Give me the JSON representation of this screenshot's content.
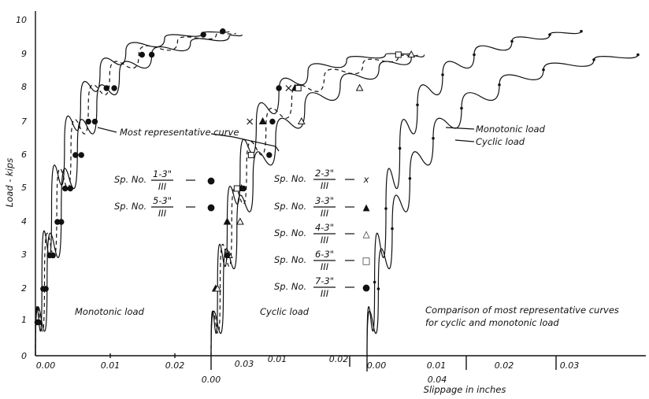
{
  "chart_data": [
    {
      "panel": "Monotonic load",
      "type": "scatter",
      "xlim": [
        0,
        0.033
      ],
      "ylim": [
        0,
        10
      ],
      "x_ticks": [
        "0.00",
        "0.01",
        "0.02"
      ],
      "series": [
        {
          "name": "Sp. No. 1-3\" / III",
          "x": [
            0.0003,
            0.0012,
            0.0022,
            0.0034,
            0.0046,
            0.0062,
            0.0082,
            0.011,
            0.0165,
            0.026
          ],
          "y": [
            1,
            2,
            3,
            4,
            5,
            6,
            7,
            8,
            9,
            9.6
          ]
        },
        {
          "name": "Sp. No. 5-3\" / III",
          "x": [
            0.0005,
            0.0016,
            0.0027,
            0.004,
            0.0054,
            0.0071,
            0.0092,
            0.0122,
            0.018,
            0.029
          ],
          "y": [
            1,
            2,
            3,
            4,
            5,
            6,
            7,
            8,
            9,
            9.7
          ]
        }
      ],
      "curves": [
        {
          "style": "solid",
          "x": [
            0,
            0.001,
            0.0025,
            0.0045,
            0.007,
            0.01,
            0.014,
            0.02,
            0.026,
            0.03
          ],
          "y": [
            0,
            2.2,
            4.5,
            6.3,
            7.6,
            8.5,
            9.1,
            9.5,
            9.65,
            9.7
          ]
        },
        {
          "style": "dashed",
          "x": [
            0,
            0.0014,
            0.0033,
            0.0055,
            0.0082,
            0.0115,
            0.016,
            0.022,
            0.028,
            0.031
          ],
          "y": [
            0,
            2.2,
            4.4,
            6.2,
            7.5,
            8.4,
            9.0,
            9.4,
            9.6,
            9.65
          ]
        },
        {
          "style": "solid",
          "x": [
            0,
            0.0018,
            0.004,
            0.0065,
            0.0095,
            0.013,
            0.018,
            0.024,
            0.03,
            0.032
          ],
          "y": [
            0,
            2.2,
            4.4,
            6.2,
            7.5,
            8.4,
            9.0,
            9.35,
            9.55,
            9.6
          ]
        }
      ]
    },
    {
      "panel": "Cyclic load",
      "type": "scatter",
      "xlim": [
        0,
        0.033
      ],
      "ylim": [
        0,
        10
      ],
      "x_ticks": [
        "0.00",
        "0.01",
        "0.02",
        "0.03",
        "0.04"
      ],
      "series": [
        {
          "name": "Sp. No. 2-3\" / III",
          "x": [
            0.006,
            0.012
          ],
          "y": [
            7,
            8
          ]
        },
        {
          "name": "Sp. No. 3-3\" / III",
          "x": [
            0.0007,
            0.0025,
            0.0047,
            0.008,
            0.013
          ],
          "y": [
            2,
            4,
            5,
            7,
            8
          ]
        },
        {
          "name": "Sp. No. 4-3\" / III",
          "x": [
            0.001,
            0.0028,
            0.0045,
            0.014,
            0.023,
            0.031
          ],
          "y": [
            2,
            3,
            4,
            7,
            8,
            9
          ]
        },
        {
          "name": "Sp. No. 6-3\" / III",
          "x": [
            0.004,
            0.0062,
            0.0135,
            0.029
          ],
          "y": [
            5,
            6,
            8,
            9
          ]
        },
        {
          "name": "Sp. No. 7-3\" / III",
          "x": [
            0.0025,
            0.005,
            0.009,
            0.0095,
            0.0105
          ],
          "y": [
            3,
            5,
            6,
            7,
            8
          ]
        }
      ],
      "curves": [
        {
          "style": "solid",
          "x": [
            0,
            0.001,
            0.0025,
            0.0045,
            0.007,
            0.0105,
            0.015,
            0.021,
            0.027,
            0.031
          ],
          "y": [
            0,
            2.0,
            4.0,
            5.6,
            6.9,
            7.9,
            8.5,
            8.85,
            9.0,
            9.05
          ]
        },
        {
          "style": "dashed",
          "x": [
            0,
            0.0014,
            0.0032,
            0.0055,
            0.0085,
            0.0125,
            0.0175,
            0.0235,
            0.029,
            0.032
          ],
          "y": [
            0,
            2.0,
            4.0,
            5.6,
            6.8,
            7.7,
            8.3,
            8.7,
            8.95,
            9.0
          ]
        },
        {
          "style": "solid",
          "x": [
            0,
            0.0019,
            0.004,
            0.0065,
            0.01,
            0.0145,
            0.02,
            0.026,
            0.031,
            0.033
          ],
          "y": [
            0,
            2.0,
            3.8,
            5.3,
            6.5,
            7.4,
            8.1,
            8.6,
            8.9,
            9.0
          ]
        }
      ]
    },
    {
      "panel": "Comparison of most representative curves for cyclic and monotonic load",
      "type": "line",
      "xlim": [
        0,
        0.044
      ],
      "ylim": [
        0,
        10
      ],
      "x_ticks": [
        "0.00",
        "0.01",
        "0.02",
        "0.03"
      ],
      "series": [
        {
          "name": "Monotonic load",
          "x": [
            0,
            0.0012,
            0.003,
            0.0052,
            0.008,
            0.012,
            0.017,
            0.023,
            0.029,
            0.034
          ],
          "y": [
            0,
            2.2,
            4.4,
            6.2,
            7.5,
            8.4,
            9.0,
            9.4,
            9.6,
            9.7
          ]
        },
        {
          "name": "Cyclic load",
          "x": [
            0,
            0.0018,
            0.004,
            0.0068,
            0.0105,
            0.015,
            0.021,
            0.028,
            0.036,
            0.043
          ],
          "y": [
            0,
            2.0,
            3.8,
            5.3,
            6.5,
            7.4,
            8.1,
            8.55,
            8.85,
            9.0
          ]
        }
      ]
    }
  ],
  "labels": {
    "ylabel": "Load - kips",
    "xlabel": "Slippage in inches",
    "y_ticks": [
      "0",
      "1",
      "2",
      "3",
      "4",
      "5",
      "6",
      "7",
      "8",
      "9",
      "10"
    ],
    "most_representative": "Most representative curve",
    "monotonic_load": "Monotonic load",
    "cyclic_load": "Cyclic load",
    "comparison_line1": "Comparison of most representative curves",
    "comparison_line2": "for cyclic and monotonic load",
    "curve_monotonic": "Monotonic load",
    "curve_cyclic": "Cyclic load",
    "sp_prefix": "Sp. No.",
    "legend_left": [
      {
        "num": "1-3\"",
        "den": "III",
        "marker": "●"
      },
      {
        "num": "5-3\"",
        "den": "III",
        "marker": "●"
      }
    ],
    "legend_mid": [
      {
        "num": "2-3\"",
        "den": "III",
        "marker": "x"
      },
      {
        "num": "3-3\"",
        "den": "III",
        "marker": "▲"
      },
      {
        "num": "4-3\"",
        "den": "III",
        "marker": "△"
      },
      {
        "num": "6-3\"",
        "den": "III",
        "marker": "□"
      },
      {
        "num": "7-3\"",
        "den": "III",
        "marker": "●"
      }
    ]
  }
}
